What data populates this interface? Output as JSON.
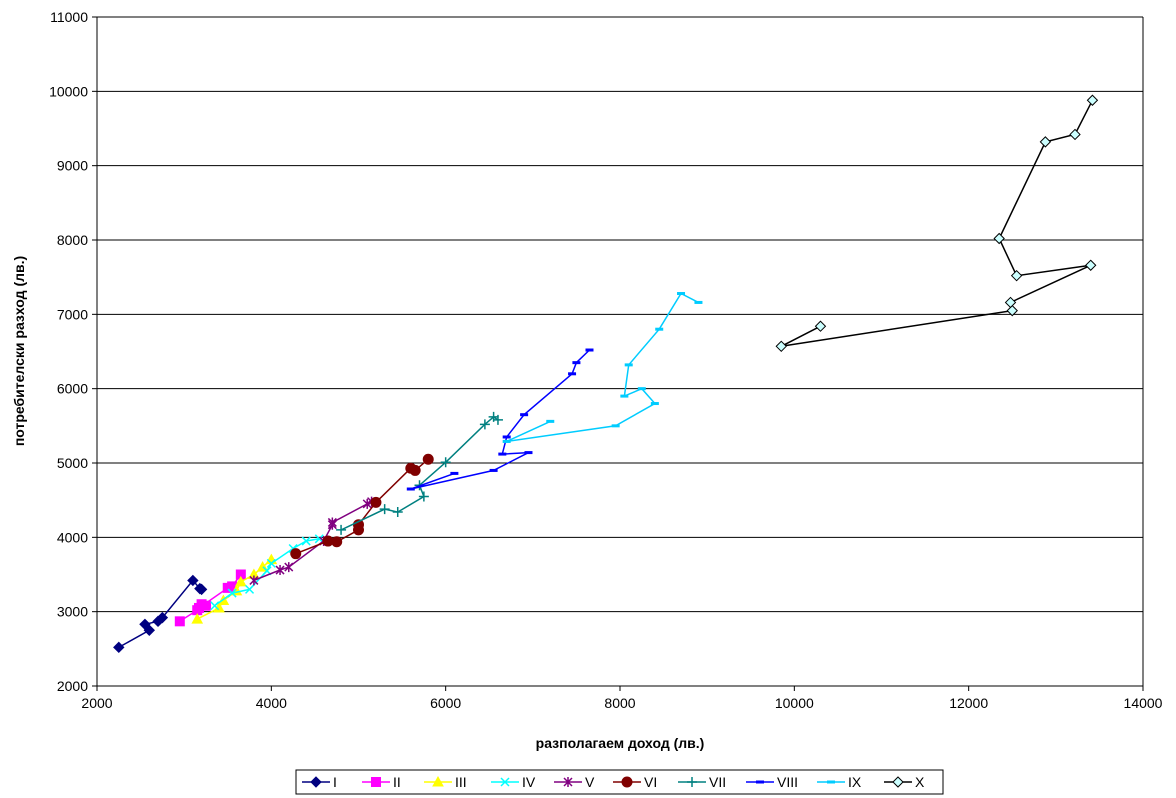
{
  "chart_data": {
    "type": "line",
    "title": "",
    "xlabel": "разполагаем доход (лв.)",
    "ylabel": "потребителски разход (лв.)",
    "xlim": [
      2000,
      14000
    ],
    "ylim": [
      2000,
      11000
    ],
    "xticks": [
      2000,
      4000,
      6000,
      8000,
      10000,
      12000,
      14000
    ],
    "yticks": [
      2000,
      3000,
      4000,
      5000,
      6000,
      7000,
      8000,
      9000,
      10000,
      11000
    ],
    "grid": "horizontal",
    "legend_position": "bottom",
    "series": [
      {
        "name": "I",
        "color": "#000080",
        "marker": "diamond",
        "points": [
          [
            2250,
            2520
          ],
          [
            2600,
            2750
          ],
          [
            2550,
            2830
          ],
          [
            2700,
            2870
          ],
          [
            2750,
            2920
          ],
          [
            3100,
            3420
          ],
          [
            3180,
            3310
          ],
          [
            3200,
            3300
          ]
        ]
      },
      {
        "name": "II",
        "color": "#FF00FF",
        "marker": "square",
        "points": [
          [
            2950,
            2870
          ],
          [
            3150,
            3020
          ],
          [
            3200,
            3100
          ],
          [
            3250,
            3080
          ],
          [
            3170,
            3050
          ],
          [
            3500,
            3320
          ],
          [
            3550,
            3340
          ],
          [
            3650,
            3500
          ]
        ]
      },
      {
        "name": "III",
        "color": "#FFFF00",
        "marker": "triangle",
        "points": [
          [
            3150,
            2900
          ],
          [
            3400,
            3050
          ],
          [
            3450,
            3150
          ],
          [
            3600,
            3280
          ],
          [
            3650,
            3400
          ],
          [
            3800,
            3500
          ],
          [
            3900,
            3600
          ],
          [
            4000,
            3700
          ]
        ]
      },
      {
        "name": "IV",
        "color": "#00FFFF",
        "marker": "x",
        "points": [
          [
            3350,
            3080
          ],
          [
            3550,
            3250
          ],
          [
            3750,
            3300
          ],
          [
            3950,
            3550
          ],
          [
            4000,
            3650
          ],
          [
            4250,
            3850
          ],
          [
            4400,
            3950
          ],
          [
            4550,
            3980
          ]
        ]
      },
      {
        "name": "V",
        "color": "#800080",
        "marker": "star",
        "points": [
          [
            3800,
            3420
          ],
          [
            4100,
            3560
          ],
          [
            4200,
            3600
          ],
          [
            4600,
            3950
          ],
          [
            4700,
            4170
          ],
          [
            4700,
            4200
          ],
          [
            5100,
            4450
          ],
          [
            5150,
            4480
          ]
        ]
      },
      {
        "name": "VI",
        "color": "#800000",
        "marker": "circle",
        "points": [
          [
            4280,
            3780
          ],
          [
            4650,
            3950
          ],
          [
            4750,
            3940
          ],
          [
            5000,
            4100
          ],
          [
            5000,
            4170
          ],
          [
            5200,
            4470
          ],
          [
            5600,
            4930
          ],
          [
            5650,
            4900
          ],
          [
            5800,
            5050
          ]
        ]
      },
      {
        "name": "VII",
        "color": "#008080",
        "marker": "plus",
        "points": [
          [
            4800,
            4100
          ],
          [
            5300,
            4380
          ],
          [
            5450,
            4340
          ],
          [
            5750,
            4550
          ],
          [
            5700,
            4700
          ],
          [
            6000,
            5010
          ],
          [
            6450,
            5520
          ],
          [
            6550,
            5620
          ],
          [
            6600,
            5580
          ]
        ]
      },
      {
        "name": "VIII",
        "color": "#0000FF",
        "marker": "dash",
        "points": [
          [
            6100,
            4860
          ],
          [
            5600,
            4650
          ],
          [
            6550,
            4900
          ],
          [
            6950,
            5140
          ],
          [
            6650,
            5120
          ],
          [
            6700,
            5350
          ],
          [
            6900,
            5650
          ],
          [
            7450,
            6200
          ],
          [
            7500,
            6350
          ],
          [
            7650,
            6520
          ]
        ]
      },
      {
        "name": "IX",
        "color": "#00CCFF",
        "marker": "dash",
        "points": [
          [
            7200,
            5560
          ],
          [
            6700,
            5290
          ],
          [
            7950,
            5500
          ],
          [
            8400,
            5800
          ],
          [
            8250,
            6000
          ],
          [
            8050,
            5900
          ],
          [
            8100,
            6320
          ],
          [
            8450,
            6800
          ],
          [
            8700,
            7280
          ],
          [
            8900,
            7160
          ]
        ]
      },
      {
        "name": "X",
        "color": "#000000",
        "marker": "open-diamond",
        "points": [
          [
            10300,
            6840
          ],
          [
            9850,
            6570
          ],
          [
            12500,
            7050
          ],
          [
            12480,
            7160
          ],
          [
            13400,
            7660
          ],
          [
            12550,
            7520
          ],
          [
            12350,
            8020
          ],
          [
            12880,
            9320
          ],
          [
            13220,
            9420
          ],
          [
            13420,
            9880
          ]
        ]
      }
    ]
  }
}
